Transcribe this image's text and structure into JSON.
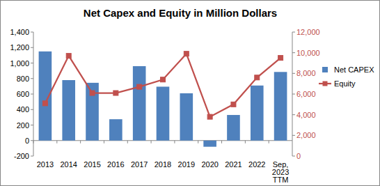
{
  "chart_data": {
    "type": "bar",
    "title": "Net Capex and Equity in Million Dollars",
    "categories": [
      "2013",
      "2014",
      "2015",
      "2016",
      "2017",
      "2018",
      "2019",
      "2020",
      "2021",
      "2022",
      "Sep, 2023 TTM"
    ],
    "series": [
      {
        "name": "Net CAPEX",
        "type": "bar",
        "color": "#4f81bd",
        "values": [
          1150,
          780,
          745,
          275,
          960,
          695,
          610,
          -80,
          330,
          710,
          885
        ]
      },
      {
        "name": "Equity",
        "type": "line",
        "axis": "y2",
        "color": "#c0504d",
        "marker": "square",
        "values": [
          5100,
          9700,
          6100,
          6100,
          6700,
          7400,
          9900,
          3800,
          5000,
          7600,
          9500
        ]
      }
    ],
    "ylim": [
      -200,
      1400
    ],
    "yticks": [
      -200,
      0,
      200,
      400,
      600,
      800,
      {
        "value": 1000,
        "label": "1,000"
      },
      {
        "value": 1200,
        "label": "1,200"
      },
      {
        "value": 1400,
        "label": "1,400"
      }
    ],
    "y2lim": [
      0,
      12000
    ],
    "y2ticks": [
      0,
      {
        "value": 2000,
        "label": "2,000"
      },
      {
        "value": 4000,
        "label": "4,000"
      },
      {
        "value": 6000,
        "label": "6,000"
      },
      {
        "value": 8000,
        "label": "8,000"
      },
      {
        "value": 10000,
        "label": "10,000"
      },
      {
        "value": 12000,
        "label": "12,000"
      }
    ],
    "legend": "right",
    "grid": false
  }
}
